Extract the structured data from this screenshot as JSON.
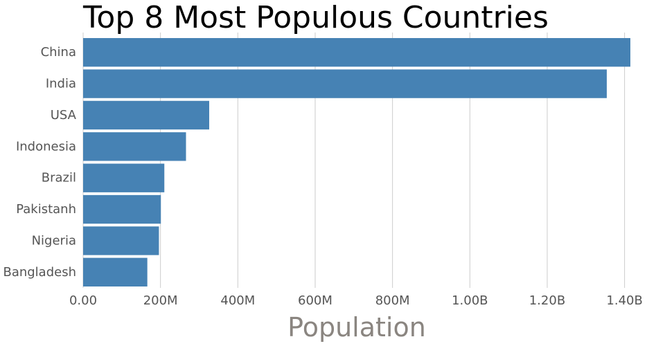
{
  "chart_data": {
    "type": "bar",
    "orientation": "horizontal",
    "title": "Top 8 Most Populous Countries",
    "xlabel": "Population",
    "ylabel": "",
    "categories": [
      "China",
      "India",
      "USA",
      "Indonesia",
      "Brazil",
      "Pakistanh",
      "Nigeria",
      "Bangladesh"
    ],
    "values": [
      1415000000,
      1354000000,
      326000000,
      266000000,
      210000000,
      201000000,
      196000000,
      166000000
    ],
    "xlim": [
      0,
      1415000000
    ],
    "x_ticks": [
      0,
      200000000,
      400000000,
      600000000,
      800000000,
      1000000000,
      1200000000,
      1400000000
    ],
    "x_tick_labels": [
      "0.00",
      "200M",
      "400M",
      "600M",
      "800M",
      "1.00B",
      "1.20B",
      "1.40B"
    ],
    "grid": true,
    "legend": "none",
    "bar_color": "#4682b4"
  }
}
